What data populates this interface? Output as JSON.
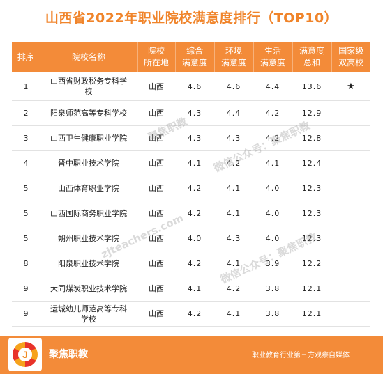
{
  "title": "山西省2022年职业院校满意度排行（TOP10）",
  "table": {
    "headers": {
      "rank": "排序",
      "school": "院校名称",
      "location_l1": "院校",
      "location_l2": "所在地",
      "overall_l1": "综合",
      "overall_l2": "满意度",
      "env_l1": "环境",
      "env_l2": "满意度",
      "life_l1": "生活",
      "life_l2": "满意度",
      "total_l1": "满意度",
      "total_l2": "总和",
      "national_l1": "国家级",
      "national_l2": "双高校"
    },
    "rows": [
      {
        "rank": "1",
        "school_l1": "山西省财政税务专科学",
        "school_l2": "校",
        "location": "山西",
        "overall": "4.6",
        "env": "4.6",
        "life": "4.4",
        "total": "13.6",
        "national": "★"
      },
      {
        "rank": "2",
        "school_l1": "阳泉师范高等专科学校",
        "school_l2": "",
        "location": "山西",
        "overall": "4.3",
        "env": "4.4",
        "life": "4.2",
        "total": "12.9",
        "national": ""
      },
      {
        "rank": "3",
        "school_l1": "山西卫生健康职业学院",
        "school_l2": "",
        "location": "山西",
        "overall": "4.3",
        "env": "4.3",
        "life": "4.2",
        "total": "12.8",
        "national": ""
      },
      {
        "rank": "4",
        "school_l1": "晋中职业技术学院",
        "school_l2": "",
        "location": "山西",
        "overall": "4.1",
        "env": "4.2",
        "life": "4.1",
        "total": "12.4",
        "national": ""
      },
      {
        "rank": "5",
        "school_l1": "山西体育职业学院",
        "school_l2": "",
        "location": "山西",
        "overall": "4.2",
        "env": "4.1",
        "life": "4.0",
        "total": "12.3",
        "national": ""
      },
      {
        "rank": "5",
        "school_l1": "山西国际商务职业学院",
        "school_l2": "",
        "location": "山西",
        "overall": "4.2",
        "env": "4.1",
        "life": "4.0",
        "total": "12.3",
        "national": ""
      },
      {
        "rank": "5",
        "school_l1": "朔州职业技术学院",
        "school_l2": "",
        "location": "山西",
        "overall": "4.0",
        "env": "4.3",
        "life": "4.0",
        "total": "12.3",
        "national": ""
      },
      {
        "rank": "8",
        "school_l1": "阳泉职业技术学院",
        "school_l2": "",
        "location": "山西",
        "overall": "4.2",
        "env": "4.1",
        "life": "3.9",
        "total": "12.2",
        "national": ""
      },
      {
        "rank": "9",
        "school_l1": "大同煤炭职业技术学院",
        "school_l2": "",
        "location": "山西",
        "overall": "4.1",
        "env": "4.2",
        "life": "3.8",
        "total": "12.1",
        "national": ""
      },
      {
        "rank": "9",
        "school_l1": "运城幼儿师范高等专科",
        "school_l2": "学校",
        "location": "山西",
        "overall": "4.2",
        "env": "4.1",
        "life": "3.8",
        "total": "12.1",
        "national": ""
      }
    ]
  },
  "watermarks": {
    "wm1": "聚焦职教",
    "wm2": "微信公众号：聚焦职教",
    "wm3": "zjteachers.com",
    "wm4": "微信公众号：聚焦职教"
  },
  "footer": {
    "logo_letter": "J",
    "brand": "聚焦职教",
    "slogan": "职业教育行业第三方观察自媒体"
  },
  "colors": {
    "accent": "#f38b39",
    "title": "#f0842a"
  }
}
